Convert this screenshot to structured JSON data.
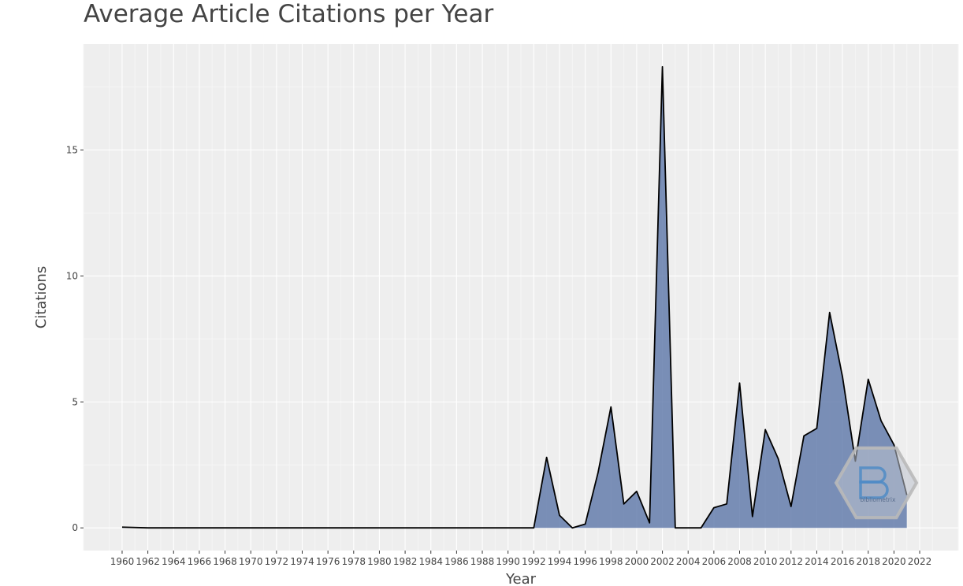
{
  "chart_data": {
    "type": "area",
    "title": "Average Article Citations per Year",
    "xlabel": "Year",
    "ylabel": "Citations",
    "xlim": [
      1957,
      2025
    ],
    "ylim": [
      -0.9,
      19.2
    ],
    "xticks": [
      1960,
      1962,
      1964,
      1966,
      1968,
      1970,
      1972,
      1974,
      1976,
      1978,
      1980,
      1982,
      1984,
      1986,
      1988,
      1990,
      1992,
      1994,
      1996,
      1998,
      2000,
      2002,
      2004,
      2006,
      2008,
      2010,
      2012,
      2014,
      2016,
      2018,
      2020,
      2022
    ],
    "yticks": [
      0,
      5,
      10,
      15
    ],
    "grid": true,
    "fill_color": "#5b76a8",
    "line_color": "#000000",
    "background_color": "#eeeeee",
    "x": [
      1960,
      1962,
      1964,
      1966,
      1968,
      1970,
      1972,
      1974,
      1976,
      1978,
      1980,
      1982,
      1984,
      1986,
      1988,
      1990,
      1991,
      1992,
      1993,
      1994,
      1995,
      1996,
      1997,
      1998,
      1999,
      2000,
      2001,
      2002,
      2003,
      2004,
      2005,
      2006,
      2007,
      2008,
      2009,
      2010,
      2011,
      2012,
      2013,
      2014,
      2015,
      2016,
      2017,
      2018,
      2019,
      2020,
      2021
    ],
    "y": [
      0.03,
      0,
      0,
      0,
      0,
      0,
      0,
      0,
      0,
      0,
      0,
      0,
      0,
      0,
      0,
      0,
      0,
      0,
      2.8,
      0.5,
      0,
      0.15,
      2.2,
      4.8,
      0.95,
      1.45,
      0.2,
      18.3,
      0,
      0,
      0,
      0.8,
      0.95,
      5.75,
      0.45,
      3.9,
      2.75,
      0.85,
      3.65,
      3.95,
      8.55,
      6.0,
      2.65,
      5.9,
      4.25,
      3.3,
      1.3
    ]
  },
  "watermark": {
    "text": "bibliometrix",
    "letter": "B"
  }
}
